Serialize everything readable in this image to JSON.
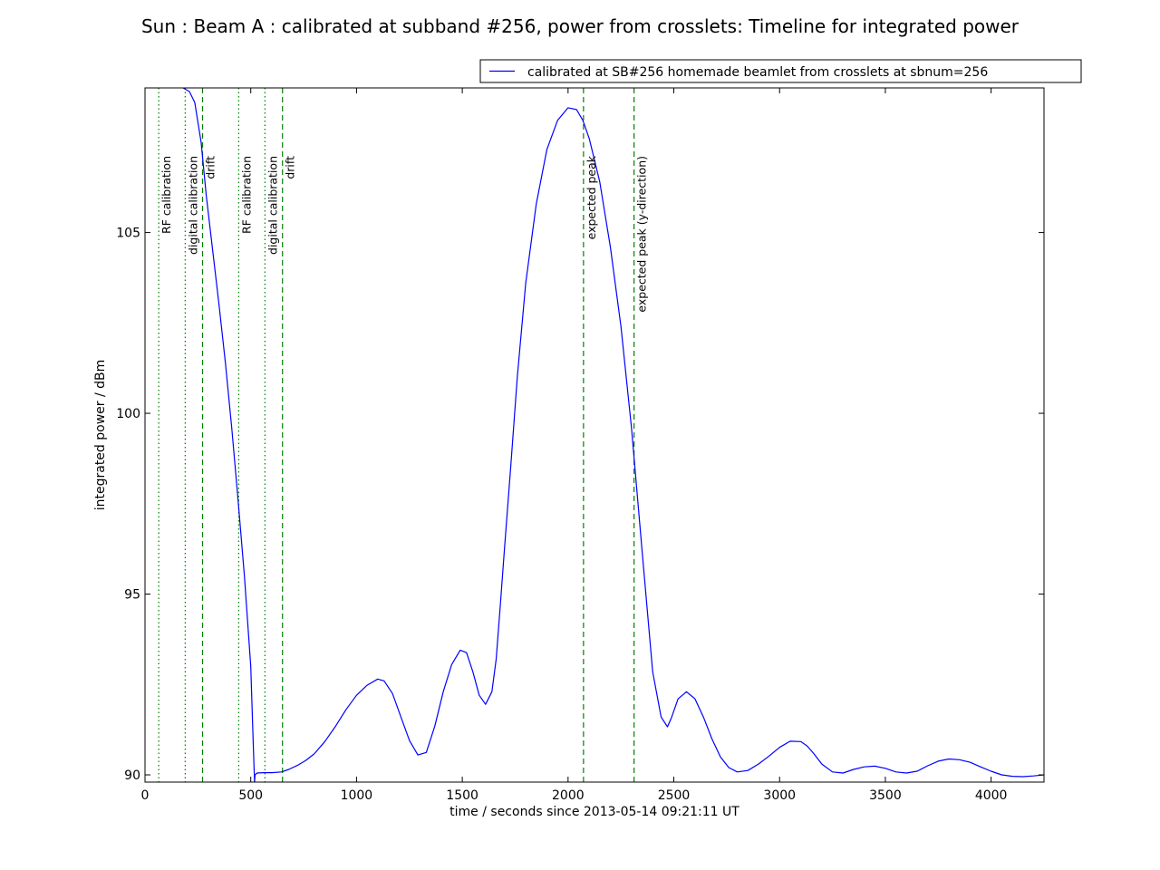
{
  "chart_data": {
    "type": "line",
    "title": "Sun : Beam A : calibrated at subband #256, power from crosslets: Timeline for integrated power",
    "xlabel": "time / seconds since 2013-05-14 09:21:11 UT",
    "ylabel": "integrated power / dBm",
    "xlim": [
      0,
      4250
    ],
    "ylim": [
      89.8,
      109.0
    ],
    "xticks": [
      0,
      500,
      1000,
      1500,
      2000,
      2500,
      3000,
      3500,
      4000
    ],
    "yticks": [
      90,
      95,
      100,
      105
    ],
    "grid": false,
    "legend_position": "top-right",
    "colors": {
      "series": "#0000ff",
      "markers": "#008000"
    },
    "series": [
      {
        "name": "calibrated at SB#256 homemade beamlet from crosslets at sbnum=256",
        "x": [
          180,
          210,
          235,
          265,
          290,
          320,
          350,
          380,
          410,
          440,
          470,
          500,
          510,
          515,
          518,
          520,
          530,
          560,
          600,
          645,
          680,
          720,
          760,
          800,
          850,
          900,
          950,
          1000,
          1050,
          1100,
          1130,
          1170,
          1210,
          1250,
          1290,
          1330,
          1370,
          1410,
          1450,
          1490,
          1520,
          1550,
          1580,
          1610,
          1640,
          1660,
          1680,
          1700,
          1730,
          1760,
          1800,
          1850,
          1900,
          1950,
          2000,
          2040,
          2070,
          2100,
          2150,
          2200,
          2250,
          2300,
          2350,
          2400,
          2440,
          2470,
          2490,
          2520,
          2560,
          2600,
          2640,
          2680,
          2720,
          2760,
          2800,
          2850,
          2900,
          2950,
          3000,
          3050,
          3100,
          3130,
          3160,
          3200,
          3250,
          3300,
          3350,
          3400,
          3450,
          3500,
          3550,
          3600,
          3650,
          3700,
          3750,
          3800,
          3850,
          3900,
          3950,
          4000,
          4050,
          4100,
          4150,
          4200,
          4250
        ],
        "y": [
          109.0,
          108.9,
          108.6,
          107.5,
          106.0,
          104.5,
          103.0,
          101.4,
          99.6,
          97.6,
          95.5,
          93.0,
          91.2,
          90.3,
          89.8,
          90.0,
          90.05,
          90.06,
          90.06,
          90.08,
          90.15,
          90.26,
          90.4,
          90.58,
          90.92,
          91.34,
          91.8,
          92.2,
          92.48,
          92.65,
          92.6,
          92.25,
          91.6,
          90.95,
          90.55,
          90.62,
          91.35,
          92.3,
          93.05,
          93.45,
          93.38,
          92.85,
          92.2,
          91.95,
          92.3,
          93.2,
          94.7,
          96.3,
          98.6,
          101.0,
          103.6,
          105.8,
          107.3,
          108.1,
          108.45,
          108.4,
          108.1,
          107.6,
          106.4,
          104.6,
          102.4,
          99.6,
          96.2,
          92.85,
          91.6,
          91.33,
          91.6,
          92.1,
          92.3,
          92.1,
          91.6,
          91.0,
          90.5,
          90.2,
          90.08,
          90.12,
          90.3,
          90.52,
          90.76,
          90.93,
          90.92,
          90.8,
          90.6,
          90.3,
          90.08,
          90.05,
          90.15,
          90.22,
          90.24,
          90.18,
          90.08,
          90.05,
          90.1,
          90.25,
          90.38,
          90.44,
          90.42,
          90.35,
          90.22,
          90.1,
          90.0,
          89.96,
          89.95,
          89.97,
          90.0
        ]
      }
    ],
    "markers": [
      {
        "x": 65,
        "style": "dotted",
        "label": "RF calibration"
      },
      {
        "x": 190,
        "style": "dotted",
        "label": "digital calibration"
      },
      {
        "x": 272,
        "style": "dashed",
        "label": "drift"
      },
      {
        "x": 443,
        "style": "dotted",
        "label": "RF calibration"
      },
      {
        "x": 567,
        "style": "dotted",
        "label": "digital calibration"
      },
      {
        "x": 650,
        "style": "dashed",
        "label": "drift"
      },
      {
        "x": 2073,
        "style": "dashed",
        "label": "expected peak"
      },
      {
        "x": 2312,
        "style": "dashed",
        "label": "expected peak (y-direction)"
      }
    ]
  }
}
